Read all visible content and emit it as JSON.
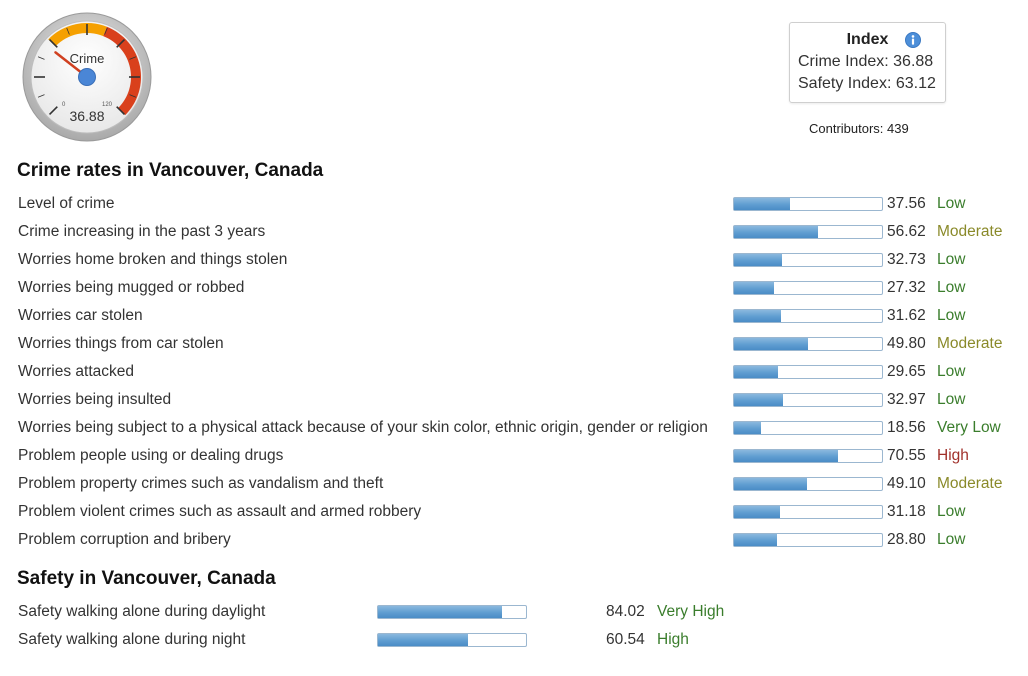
{
  "gauge": {
    "label": "Crime",
    "value": "36.88",
    "min": "0",
    "max": "120",
    "needle_fraction": 0.3073
  },
  "index_box": {
    "title": "Index",
    "crime_label": "Crime Index:",
    "crime_value": "36.88",
    "safety_label": "Safety Index:",
    "safety_value": "63.12"
  },
  "contributors": "Contributors: 439",
  "crime_section": {
    "heading": "Crime rates in Vancouver, Canada",
    "rows": [
      {
        "label": "Level of crime",
        "value": "37.56",
        "level": "Low",
        "level_color": "#3a7d2c",
        "percent": 37.56
      },
      {
        "label": "Crime increasing in the past 3 years",
        "value": "56.62",
        "level": "Moderate",
        "level_color": "#8a8a2a",
        "percent": 56.62
      },
      {
        "label": "Worries home broken and things stolen",
        "value": "32.73",
        "level": "Low",
        "level_color": "#3a7d2c",
        "percent": 32.73
      },
      {
        "label": "Worries being mugged or robbed",
        "value": "27.32",
        "level": "Low",
        "level_color": "#3a7d2c",
        "percent": 27.32
      },
      {
        "label": "Worries car stolen",
        "value": "31.62",
        "level": "Low",
        "level_color": "#3a7d2c",
        "percent": 31.62
      },
      {
        "label": "Worries things from car stolen",
        "value": "49.80",
        "level": "Moderate",
        "level_color": "#8a8a2a",
        "percent": 49.8
      },
      {
        "label": "Worries attacked",
        "value": "29.65",
        "level": "Low",
        "level_color": "#3a7d2c",
        "percent": 29.65
      },
      {
        "label": "Worries being insulted",
        "value": "32.97",
        "level": "Low",
        "level_color": "#3a7d2c",
        "percent": 32.97
      },
      {
        "label": "Worries being subject to a physical attack because of your skin color, ethnic origin, gender or religion",
        "value": "18.56",
        "level": "Very Low",
        "level_color": "#3a7d2c",
        "percent": 18.56
      },
      {
        "label": "Problem people using or dealing drugs",
        "value": "70.55",
        "level": "High",
        "level_color": "#a0302a",
        "percent": 70.55
      },
      {
        "label": "Problem property crimes such as vandalism and theft",
        "value": "49.10",
        "level": "Moderate",
        "level_color": "#8a8a2a",
        "percent": 49.1
      },
      {
        "label": "Problem violent crimes such as assault and armed robbery",
        "value": "31.18",
        "level": "Low",
        "level_color": "#3a7d2c",
        "percent": 31.18
      },
      {
        "label": "Problem corruption and bribery",
        "value": "28.80",
        "level": "Low",
        "level_color": "#3a7d2c",
        "percent": 28.8
      }
    ]
  },
  "safety_section": {
    "heading": "Safety in Vancouver, Canada",
    "rows": [
      {
        "label": "Safety walking alone during daylight",
        "value": "84.02",
        "level": "Very High",
        "level_color": "#3a7d2c",
        "percent": 84.02
      },
      {
        "label": "Safety walking alone during night",
        "value": "60.54",
        "level": "High",
        "level_color": "#3a7d2c",
        "percent": 60.54
      }
    ]
  },
  "colors": {
    "bar_fill": "#5f9dd1",
    "gauge_red": "#d9401c",
    "gauge_orange": "#f5a000",
    "needle": "#d04020",
    "hub": "#4a86d6"
  }
}
